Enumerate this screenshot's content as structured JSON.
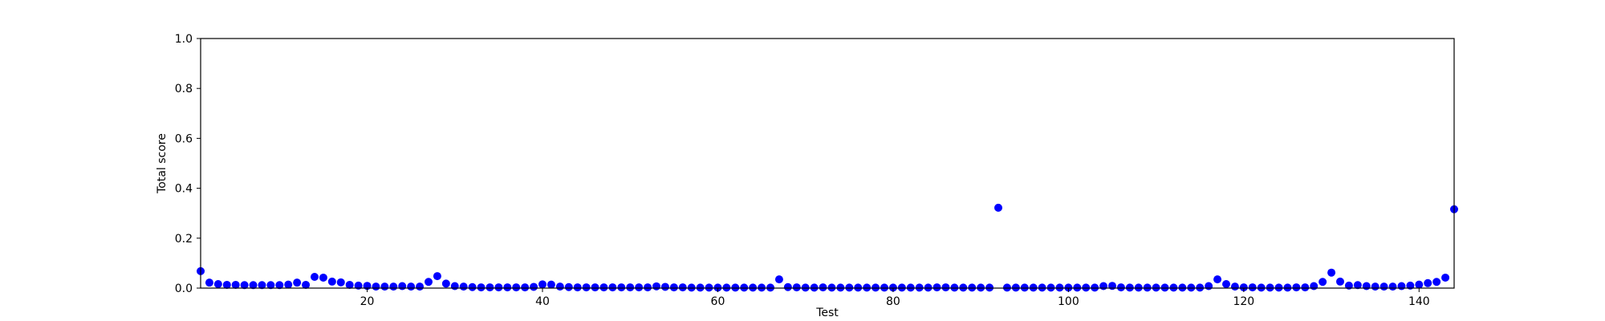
{
  "chart_data": {
    "type": "scatter",
    "title": "",
    "xlabel": "Test",
    "ylabel": "Total score",
    "xlim": [
      1,
      144
    ],
    "ylim": [
      0,
      1.0
    ],
    "x_ticks": [
      20,
      40,
      60,
      80,
      100,
      120,
      140
    ],
    "y_ticks": [
      0.0,
      0.2,
      0.4,
      0.6,
      0.8,
      1.0
    ],
    "x_tick_labels": [
      "20",
      "40",
      "60",
      "80",
      "100",
      "120",
      "140"
    ],
    "y_tick_labels": [
      "0.0",
      "0.2",
      "0.4",
      "0.6",
      "0.8",
      "1.0"
    ],
    "grid": false,
    "marker_color": "#0000ff",
    "series": [
      {
        "x": [
          1,
          2,
          3,
          4,
          5,
          6,
          7,
          8,
          9,
          10,
          11,
          12,
          13,
          14,
          15,
          16,
          17,
          18,
          19,
          20,
          21,
          22,
          23,
          24,
          25,
          26,
          27,
          28,
          29,
          30,
          31,
          32,
          33,
          34,
          35,
          36,
          37,
          38,
          39,
          40,
          41,
          42,
          43,
          44,
          45,
          46,
          47,
          48,
          49,
          50,
          51,
          52,
          53,
          54,
          55,
          56,
          57,
          58,
          59,
          60,
          61,
          62,
          63,
          64,
          65,
          66,
          67,
          68,
          69,
          70,
          71,
          72,
          73,
          74,
          75,
          76,
          77,
          78,
          79,
          80,
          81,
          82,
          83,
          84,
          85,
          86,
          87,
          88,
          89,
          90,
          91,
          92,
          93,
          94,
          95,
          96,
          97,
          98,
          99,
          100,
          101,
          102,
          103,
          104,
          105,
          106,
          107,
          108,
          109,
          110,
          111,
          112,
          113,
          114,
          115,
          116,
          117,
          118,
          119,
          120,
          121,
          122,
          123,
          124,
          125,
          126,
          127,
          128,
          129,
          130,
          131,
          132,
          133,
          134,
          135,
          136,
          137,
          138,
          139,
          140,
          141,
          142,
          143,
          144
        ],
        "y": [
          0.068,
          0.022,
          0.016,
          0.013,
          0.013,
          0.012,
          0.012,
          0.012,
          0.012,
          0.012,
          0.014,
          0.022,
          0.013,
          0.045,
          0.042,
          0.026,
          0.023,
          0.013,
          0.01,
          0.009,
          0.006,
          0.006,
          0.006,
          0.008,
          0.006,
          0.006,
          0.025,
          0.048,
          0.018,
          0.008,
          0.006,
          0.004,
          0.003,
          0.003,
          0.003,
          0.003,
          0.003,
          0.003,
          0.005,
          0.015,
          0.014,
          0.006,
          0.004,
          0.003,
          0.003,
          0.003,
          0.003,
          0.003,
          0.003,
          0.003,
          0.003,
          0.003,
          0.007,
          0.005,
          0.003,
          0.003,
          0.002,
          0.002,
          0.002,
          0.002,
          0.002,
          0.002,
          0.002,
          0.002,
          0.002,
          0.002,
          0.035,
          0.004,
          0.003,
          0.002,
          0.002,
          0.003,
          0.002,
          0.002,
          0.002,
          0.002,
          0.002,
          0.002,
          0.002,
          0.002,
          0.002,
          0.002,
          0.002,
          0.002,
          0.003,
          0.003,
          0.002,
          0.002,
          0.002,
          0.002,
          0.002,
          0.322,
          0.002,
          0.002,
          0.002,
          0.002,
          0.002,
          0.002,
          0.002,
          0.002,
          0.002,
          0.002,
          0.002,
          0.008,
          0.009,
          0.003,
          0.002,
          0.002,
          0.002,
          0.002,
          0.002,
          0.002,
          0.002,
          0.002,
          0.002,
          0.008,
          0.035,
          0.016,
          0.006,
          0.003,
          0.003,
          0.002,
          0.002,
          0.002,
          0.002,
          0.003,
          0.003,
          0.008,
          0.025,
          0.062,
          0.026,
          0.01,
          0.012,
          0.008,
          0.006,
          0.006,
          0.006,
          0.008,
          0.01,
          0.014,
          0.02,
          0.025,
          0.042,
          0.316
        ]
      }
    ]
  }
}
